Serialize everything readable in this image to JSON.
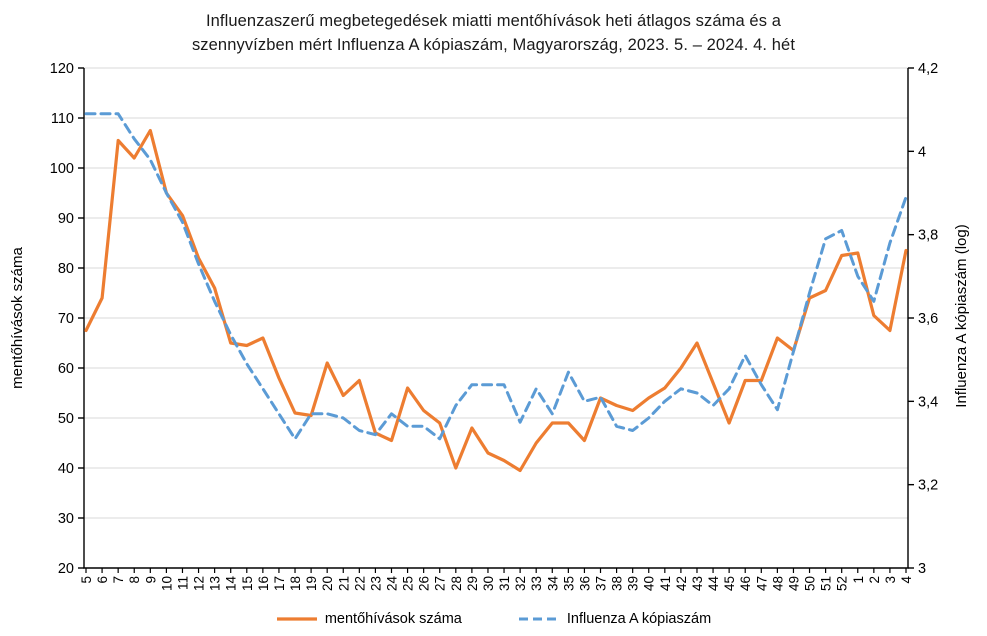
{
  "title": {
    "line1": "Influenzaszerű megbetegedések miatti mentőhívások heti átlagos száma és a",
    "line2": "szennyvízben mért Influenza A kópiaszám, Magyarország, 2023. 5. – 2024. 4. hét"
  },
  "axes": {
    "left_title": "mentőhívások száma",
    "right_title": "Influenza A kópiaszám (log)",
    "left_ticks": [
      120,
      110,
      100,
      90,
      80,
      70,
      60,
      50,
      40,
      30,
      20
    ],
    "right_ticks": [
      {
        "value": 4.2,
        "label": "4,2"
      },
      {
        "value": 4.0,
        "label": "4"
      },
      {
        "value": 3.8,
        "label": "3,8"
      },
      {
        "value": 3.6,
        "label": "3,6"
      },
      {
        "value": 3.4,
        "label": "3,4"
      },
      {
        "value": 3.2,
        "label": "3,2"
      },
      {
        "value": 3.0,
        "label": "3"
      }
    ]
  },
  "legend": {
    "calls_label": "mentőhívások száma",
    "copies_label": "Influenza A kópiaszám"
  },
  "colors": {
    "calls": "#ED7D31",
    "copies": "#5B9BD5",
    "grid": "#D9D9D9",
    "axis": "#000000"
  },
  "chart_data": {
    "type": "line",
    "title": "Influenzaszerű megbetegedések miatti mentőhívások heti átlagos száma és a szennyvízben mért Influenza A kópiaszám, Magyarország, 2023. 5. – 2024. 4. hét",
    "categories": [
      "5",
      "6",
      "7",
      "8",
      "9",
      "10",
      "11",
      "12",
      "13",
      "14",
      "15",
      "16",
      "17",
      "18",
      "19",
      "20",
      "21",
      "22",
      "23",
      "24",
      "25",
      "26",
      "27",
      "28",
      "29",
      "30",
      "31",
      "32",
      "33",
      "34",
      "35",
      "36",
      "37",
      "38",
      "39",
      "40",
      "41",
      "42",
      "43",
      "44",
      "45",
      "46",
      "47",
      "48",
      "49",
      "50",
      "51",
      "52",
      "1",
      "2",
      "3",
      "4"
    ],
    "series": [
      {
        "name": "mentőhívások száma",
        "axis": "left",
        "style": "solid",
        "color": "#ED7D31",
        "values": [
          67.5,
          74,
          105.5,
          102,
          107.5,
          95,
          90.5,
          82,
          76,
          65,
          64.5,
          66,
          58,
          51,
          50.5,
          61,
          54.5,
          57.5,
          47,
          45.5,
          56,
          51.5,
          49,
          40,
          48,
          43,
          41.5,
          39.5,
          45,
          49,
          49,
          45.5,
          54,
          52.5,
          51.5,
          54,
          56,
          60,
          65,
          57,
          49,
          57.5,
          57.5,
          66,
          63.5,
          74,
          75.5,
          82.5,
          83,
          70.5,
          67.5,
          83.5
        ]
      },
      {
        "name": "Influenza A kópiaszám",
        "axis": "right",
        "style": "dashed",
        "color": "#5B9BD5",
        "values": [
          4.09,
          4.09,
          4.09,
          4.03,
          3.98,
          3.9,
          3.83,
          3.73,
          3.64,
          3.56,
          3.49,
          3.43,
          3.37,
          3.31,
          3.37,
          3.37,
          3.36,
          3.33,
          3.32,
          3.37,
          3.34,
          3.34,
          3.31,
          3.39,
          3.44,
          3.44,
          3.44,
          3.35,
          3.43,
          3.37,
          3.47,
          3.4,
          3.41,
          3.34,
          3.33,
          3.36,
          3.4,
          3.43,
          3.42,
          3.39,
          3.43,
          3.51,
          3.44,
          3.38,
          3.52,
          3.66,
          3.79,
          3.81,
          3.7,
          3.64,
          3.78,
          3.89
        ]
      }
    ],
    "y_left": {
      "label": "mentőhívások száma",
      "min": 20,
      "max": 120,
      "step": 10
    },
    "y_right": {
      "label": "Influenza A kópiaszám (log)",
      "min": 3,
      "max": 4.2,
      "step": 0.2
    },
    "grid": true,
    "legend_position": "bottom"
  }
}
